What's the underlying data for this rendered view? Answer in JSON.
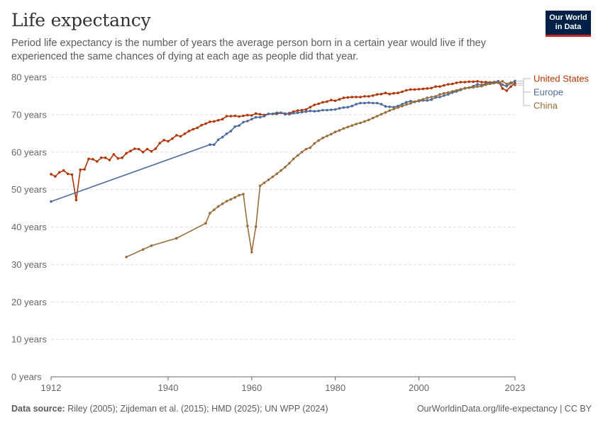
{
  "header": {
    "title": "Life expectancy",
    "subtitle": "Period life expectancy is the number of years the average person born in a certain year would live if they experienced the same chances of dying at each age as people did that year.",
    "logo_line1": "Our World",
    "logo_line2": "in Data"
  },
  "footer": {
    "source_label": "Data source:",
    "source_text": "Riley (2005); Zijdeman et al. (2015); HMD (2025); UN WPP (2024)",
    "link_text": "OurWorldinData.org/life-expectancy | CC BY"
  },
  "colors": {
    "united_states": "#b13507",
    "europe": "#4c6a9c",
    "china": "#986d39",
    "grid": "#dddddd",
    "axis": "#666666",
    "text": "#666666"
  },
  "chart_data": {
    "type": "line",
    "xlim": [
      1912,
      2023
    ],
    "ylim": [
      0,
      80
    ],
    "x_ticks": [
      1912,
      1940,
      1960,
      1980,
      2000,
      2023
    ],
    "y_ticks": [
      {
        "value": 0,
        "label": "0 years"
      },
      {
        "value": 10,
        "label": "10 years"
      },
      {
        "value": 20,
        "label": "20 years"
      },
      {
        "value": 30,
        "label": "30 years"
      },
      {
        "value": 40,
        "label": "40 years"
      },
      {
        "value": 50,
        "label": "50 years"
      },
      {
        "value": 60,
        "label": "60 years"
      },
      {
        "value": 70,
        "label": "70 years"
      },
      {
        "value": 80,
        "label": "80 years"
      }
    ],
    "grid": true,
    "legend_placement": "right",
    "series": [
      {
        "name": "United States",
        "color": "#b13507",
        "x": [
          1912,
          1913,
          1914,
          1915,
          1916,
          1917,
          1918,
          1919,
          1920,
          1921,
          1922,
          1923,
          1924,
          1925,
          1926,
          1927,
          1928,
          1929,
          1930,
          1931,
          1932,
          1933,
          1934,
          1935,
          1936,
          1937,
          1938,
          1939,
          1940,
          1941,
          1942,
          1943,
          1944,
          1945,
          1946,
          1947,
          1948,
          1949,
          1950,
          1951,
          1952,
          1953,
          1954,
          1955,
          1956,
          1957,
          1958,
          1959,
          1960,
          1961,
          1962,
          1963,
          1964,
          1965,
          1966,
          1967,
          1968,
          1969,
          1970,
          1971,
          1972,
          1973,
          1974,
          1975,
          1976,
          1977,
          1978,
          1979,
          1980,
          1981,
          1982,
          1983,
          1984,
          1985,
          1986,
          1987,
          1988,
          1989,
          1990,
          1991,
          1992,
          1993,
          1994,
          1995,
          1996,
          1997,
          1998,
          1999,
          2000,
          2001,
          2002,
          2003,
          2004,
          2005,
          2006,
          2007,
          2008,
          2009,
          2010,
          2011,
          2012,
          2013,
          2014,
          2015,
          2016,
          2017,
          2018,
          2019,
          2020,
          2021,
          2022,
          2023
        ],
        "values": [
          54.1,
          53.5,
          54.6,
          55.1,
          54.2,
          54.0,
          47.2,
          55.3,
          55.4,
          58.2,
          58.1,
          57.5,
          58.5,
          58.5,
          57.9,
          59.4,
          58.3,
          58.5,
          59.7,
          60.3,
          60.9,
          60.8,
          60.0,
          60.8,
          60.2,
          60.9,
          62.4,
          63.2,
          62.9,
          63.6,
          64.5,
          64.2,
          64.9,
          65.6,
          66.1,
          66.5,
          67.2,
          67.6,
          68.1,
          68.2,
          68.5,
          68.8,
          69.6,
          69.6,
          69.7,
          69.5,
          69.7,
          69.9,
          69.8,
          70.3,
          70.1,
          69.9,
          70.2,
          70.2,
          70.2,
          70.5,
          70.1,
          70.4,
          70.8,
          71.1,
          71.2,
          71.4,
          72.0,
          72.6,
          72.9,
          73.3,
          73.5,
          73.9,
          73.7,
          74.1,
          74.5,
          74.6,
          74.7,
          74.7,
          74.7,
          74.9,
          74.9,
          75.1,
          75.4,
          75.5,
          75.8,
          75.5,
          75.7,
          75.8,
          76.1,
          76.5,
          76.7,
          76.7,
          76.8,
          76.9,
          77.0,
          77.1,
          77.5,
          77.5,
          77.8,
          78.1,
          78.2,
          78.5,
          78.7,
          78.7,
          78.8,
          78.8,
          78.9,
          78.7,
          78.7,
          78.6,
          78.7,
          78.9,
          77.0,
          76.4,
          77.5,
          78.4
        ]
      },
      {
        "name": "Europe",
        "color": "#4c6a9c",
        "x": [
          1912,
          1950,
          1951,
          1952,
          1953,
          1954,
          1955,
          1956,
          1957,
          1958,
          1959,
          1960,
          1961,
          1962,
          1963,
          1964,
          1965,
          1966,
          1967,
          1968,
          1969,
          1970,
          1971,
          1972,
          1973,
          1974,
          1975,
          1976,
          1977,
          1978,
          1979,
          1980,
          1981,
          1982,
          1983,
          1984,
          1985,
          1986,
          1987,
          1988,
          1989,
          1990,
          1991,
          1992,
          1993,
          1994,
          1995,
          1996,
          1997,
          1998,
          1999,
          2000,
          2001,
          2002,
          2003,
          2004,
          2005,
          2006,
          2007,
          2008,
          2009,
          2010,
          2011,
          2012,
          2013,
          2014,
          2015,
          2016,
          2017,
          2018,
          2019,
          2020,
          2021,
          2022,
          2023
        ],
        "values": [
          46.8,
          62.0,
          62.0,
          63.3,
          64.0,
          64.9,
          65.6,
          66.8,
          67.1,
          68.0,
          68.3,
          68.8,
          69.3,
          69.3,
          69.6,
          70.2,
          70.2,
          70.5,
          70.5,
          70.3,
          70.1,
          70.4,
          70.5,
          70.7,
          70.8,
          71.0,
          70.9,
          71.0,
          71.2,
          71.2,
          71.3,
          71.4,
          71.7,
          71.9,
          72.0,
          72.3,
          72.8,
          73.1,
          73.1,
          73.2,
          73.1,
          73.1,
          72.8,
          72.2,
          72.1,
          72.0,
          72.3,
          72.8,
          73.3,
          73.6,
          73.4,
          73.6,
          73.8,
          73.8,
          74.0,
          74.6,
          74.7,
          75.1,
          75.4,
          75.9,
          76.2,
          76.6,
          77.1,
          77.2,
          77.6,
          78.1,
          77.9,
          78.3,
          78.3,
          78.6,
          78.9,
          78.0,
          77.6,
          78.4,
          79.0
        ]
      },
      {
        "name": "China",
        "color": "#986d39",
        "x": [
          1930,
          1934,
          1936,
          1942,
          1949,
          1950,
          1951,
          1952,
          1953,
          1954,
          1955,
          1956,
          1957,
          1958,
          1959,
          1960,
          1961,
          1962,
          1963,
          1964,
          1965,
          1966,
          1967,
          1968,
          1969,
          1970,
          1971,
          1972,
          1973,
          1974,
          1975,
          1976,
          1977,
          1978,
          1979,
          1980,
          1981,
          1982,
          1983,
          1984,
          1985,
          1986,
          1987,
          1988,
          1989,
          1990,
          1991,
          1992,
          1993,
          1994,
          1995,
          1996,
          1997,
          1998,
          1999,
          2000,
          2001,
          2002,
          2003,
          2004,
          2005,
          2006,
          2007,
          2008,
          2009,
          2010,
          2011,
          2012,
          2013,
          2014,
          2015,
          2016,
          2017,
          2018,
          2019,
          2020,
          2021,
          2022,
          2023
        ],
        "values": [
          32.0,
          34.0,
          35.0,
          37.0,
          41.0,
          43.7,
          44.6,
          45.5,
          46.2,
          46.9,
          47.4,
          47.9,
          48.5,
          48.8,
          40.3,
          33.3,
          40.1,
          51.0,
          51.8,
          52.6,
          53.4,
          54.2,
          55.1,
          56.0,
          57.0,
          58.2,
          59.1,
          60.0,
          60.8,
          61.2,
          62.3,
          63.1,
          63.8,
          64.3,
          64.8,
          65.4,
          65.8,
          66.3,
          66.7,
          67.1,
          67.5,
          67.8,
          68.2,
          68.6,
          69.1,
          69.6,
          70.1,
          70.6,
          71.1,
          71.5,
          71.9,
          72.3,
          72.7,
          73.0,
          73.5,
          73.8,
          74.1,
          74.5,
          74.7,
          74.9,
          75.4,
          75.7,
          75.9,
          76.2,
          76.5,
          76.8,
          77.0,
          77.2,
          77.3,
          77.5,
          77.6,
          78.0,
          78.2,
          78.4,
          78.5,
          78.9,
          78.2,
          78.6,
          77.9
        ]
      }
    ]
  }
}
